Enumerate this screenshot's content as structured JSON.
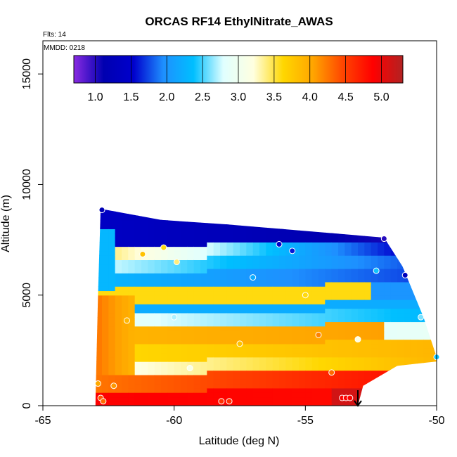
{
  "chart_data": {
    "type": "heatmap",
    "title": "ORCAS RF14 EthylNitrate_AWAS",
    "subtitle_flights": "Flts: 14",
    "subtitle_date": "MMDD: 0218",
    "xlabel": "Latitude (deg N)",
    "ylabel": "Altitude (m)",
    "xlim": [
      -65,
      -50
    ],
    "ylim": [
      0,
      16500
    ],
    "x_ticks": [
      -65,
      -60,
      -55,
      -50
    ],
    "x_tick_labels": [
      "-65",
      "-60",
      "-55",
      "-50"
    ],
    "y_ticks": [
      0,
      5000,
      10000,
      15000
    ],
    "y_tick_labels": [
      "0",
      "5000",
      "10000",
      "15000"
    ],
    "colorbar": {
      "range": [
        0.7,
        5.3
      ],
      "ticks": [
        1.0,
        1.5,
        2.0,
        2.5,
        3.0,
        3.5,
        4.0,
        4.5,
        5.0
      ],
      "tick_labels": [
        "1.0",
        "1.5",
        "2.0",
        "2.5",
        "3.0",
        "3.5",
        "4.0",
        "4.5",
        "5.0"
      ],
      "colors": [
        "#8a2be2",
        "#0000b0",
        "#0000cd",
        "#1e90ff",
        "#00bfff",
        "#e0ffff",
        "#ffffe0",
        "#ffd700",
        "#ffa500",
        "#ff4500",
        "#ff0000",
        "#b22222"
      ]
    },
    "field_region": {
      "lat_min": -63.0,
      "lat_max": -50.0,
      "top_altitude_points": [
        {
          "lat": -62.9,
          "alt": 5000
        },
        {
          "lat": -62.8,
          "alt": 8900
        },
        {
          "lat": -60.5,
          "alt": 8400
        },
        {
          "lat": -58.0,
          "alt": 8200
        },
        {
          "lat": -55.0,
          "alt": 7900
        },
        {
          "lat": -52.0,
          "alt": 7600
        },
        {
          "lat": -51.3,
          "alt": 6300
        },
        {
          "lat": -50.5,
          "alt": 4000
        },
        {
          "lat": -50.0,
          "alt": 2200
        }
      ],
      "bottom_altitude_points": [
        {
          "lat": -63.0,
          "alt": 0
        },
        {
          "lat": -53.0,
          "alt": 0
        },
        {
          "lat": -52.8,
          "alt": 900
        },
        {
          "lat": -51.5,
          "alt": 1800
        },
        {
          "lat": -50.0,
          "alt": 2000
        }
      ]
    },
    "observation_points": [
      {
        "lat": -62.75,
        "alt": 8850,
        "value": 1.2
      },
      {
        "lat": -60.4,
        "alt": 7150,
        "value": 3.6
      },
      {
        "lat": -56.0,
        "alt": 7300,
        "value": 1.5
      },
      {
        "lat": -55.5,
        "alt": 7000,
        "value": 1.6
      },
      {
        "lat": -52.0,
        "alt": 7550,
        "value": 1.0
      },
      {
        "lat": -61.2,
        "alt": 6850,
        "value": 3.8
      },
      {
        "lat": -59.9,
        "alt": 6500,
        "value": 3.4
      },
      {
        "lat": -52.3,
        "alt": 6100,
        "value": 2.4
      },
      {
        "lat": -51.2,
        "alt": 5900,
        "value": 1.3
      },
      {
        "lat": -57.0,
        "alt": 5800,
        "value": 2.2
      },
      {
        "lat": -55.0,
        "alt": 5000,
        "value": 3.6
      },
      {
        "lat": -60.0,
        "alt": 4000,
        "value": 2.7
      },
      {
        "lat": -61.8,
        "alt": 3850,
        "value": 3.9
      },
      {
        "lat": -54.5,
        "alt": 3200,
        "value": 4.2
      },
      {
        "lat": -53.0,
        "alt": 3000,
        "value": 3.2
      },
      {
        "lat": -57.5,
        "alt": 2800,
        "value": 3.8
      },
      {
        "lat": -50.6,
        "alt": 4000,
        "value": 2.6
      },
      {
        "lat": -50.0,
        "alt": 2200,
        "value": 2.4
      },
      {
        "lat": -59.4,
        "alt": 1700,
        "value": 3.1
      },
      {
        "lat": -54.0,
        "alt": 1500,
        "value": 4.3
      },
      {
        "lat": -62.9,
        "alt": 1000,
        "value": 4.0
      },
      {
        "lat": -62.3,
        "alt": 900,
        "value": 4.1
      },
      {
        "lat": -62.8,
        "alt": 350,
        "value": 4.4
      },
      {
        "lat": -62.7,
        "alt": 200,
        "value": 4.3
      },
      {
        "lat": -58.2,
        "alt": 200,
        "value": 4.6
      },
      {
        "lat": -57.9,
        "alt": 200,
        "value": 4.6
      },
      {
        "lat": -53.6,
        "alt": 350,
        "value": 4.9
      },
      {
        "lat": -53.45,
        "alt": 350,
        "value": 4.9
      },
      {
        "lat": -53.3,
        "alt": 350,
        "value": 4.9
      }
    ],
    "marker": {
      "lat": -53.0,
      "alt": 0,
      "symbol": "arrow-down"
    }
  }
}
